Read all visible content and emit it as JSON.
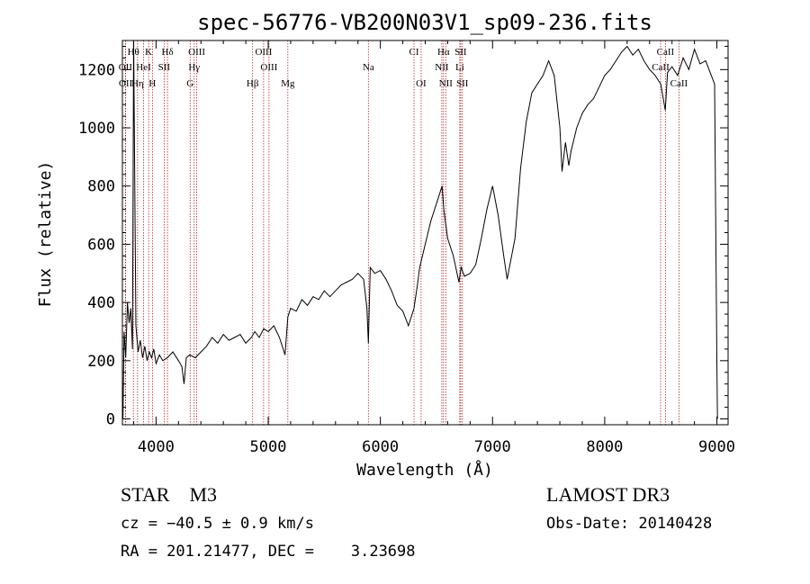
{
  "chart_data": {
    "type": "line",
    "title": "spec-56776-VB200N03V1_sp09-236.fits",
    "xlabel": "Wavelength (Å)",
    "ylabel": "Flux (relative)",
    "xlim": [
      3700,
      9100
    ],
    "ylim": [
      -20,
      1300
    ],
    "xticks": [
      4000,
      5000,
      6000,
      7000,
      8000,
      9000
    ],
    "xtick_labels": [
      "4000",
      "5000",
      "6000",
      "7000",
      "8000",
      "9000"
    ],
    "yticks": [
      0,
      200,
      400,
      600,
      800,
      1000,
      1200
    ],
    "ytick_labels": [
      "0",
      "200",
      "400",
      "600",
      "800",
      "1000",
      "1200"
    ],
    "grid": false,
    "line_color": "#000000",
    "marker_color": "#b22222",
    "spectral_lines": [
      {
        "label": "Hθ",
        "wavelength": 3798,
        "row": 0
      },
      {
        "label": "K",
        "wavelength": 3934,
        "row": 0
      },
      {
        "label": "Hδ",
        "wavelength": 4102,
        "row": 0
      },
      {
        "label": "OIII",
        "wavelength": 4363,
        "row": 0
      },
      {
        "label": "OIII",
        "wavelength": 4959,
        "row": 0
      },
      {
        "label": "CI",
        "wavelength": 6300,
        "row": 0
      },
      {
        "label": "Hα",
        "wavelength": 6563,
        "row": 0
      },
      {
        "label": "SII",
        "wavelength": 6716,
        "row": 0
      },
      {
        "label": "CaII",
        "wavelength": 8542,
        "row": 0
      },
      {
        "label": "OII",
        "wavelength": 3727,
        "row": 1
      },
      {
        "label": "HeI",
        "wavelength": 3889,
        "row": 1
      },
      {
        "label": "SII",
        "wavelength": 4072,
        "row": 1
      },
      {
        "label": "Hγ",
        "wavelength": 4340,
        "row": 1
      },
      {
        "label": "OIII",
        "wavelength": 5007,
        "row": 1
      },
      {
        "label": "Na",
        "wavelength": 5893,
        "row": 1
      },
      {
        "label": "NII",
        "wavelength": 6548,
        "row": 1
      },
      {
        "label": "Li",
        "wavelength": 6708,
        "row": 1
      },
      {
        "label": "CaII",
        "wavelength": 8498,
        "row": 1
      },
      {
        "label": "OII",
        "wavelength": 3729,
        "row": 2
      },
      {
        "label": "Hη",
        "wavelength": 3835,
        "row": 2
      },
      {
        "label": "H",
        "wavelength": 3968,
        "row": 2
      },
      {
        "label": "G",
        "wavelength": 4304,
        "row": 2
      },
      {
        "label": "Hβ",
        "wavelength": 4861,
        "row": 2
      },
      {
        "label": "Mg",
        "wavelength": 5175,
        "row": 2
      },
      {
        "label": "OI",
        "wavelength": 6363,
        "row": 2
      },
      {
        "label": "NII",
        "wavelength": 6583,
        "row": 2
      },
      {
        "label": "SII",
        "wavelength": 6731,
        "row": 2
      },
      {
        "label": "CaII",
        "wavelength": 8662,
        "row": 2
      }
    ],
    "series": [
      {
        "name": "flux",
        "x": [
          3705,
          3715,
          3730,
          3745,
          3760,
          3775,
          3790,
          3800,
          3820,
          3840,
          3860,
          3880,
          3900,
          3920,
          3940,
          3960,
          3980,
          4000,
          4030,
          4060,
          4100,
          4150,
          4200,
          4230,
          4250,
          4270,
          4300,
          4350,
          4400,
          4450,
          4500,
          4550,
          4600,
          4650,
          4700,
          4750,
          4800,
          4850,
          4880,
          4920,
          4960,
          5000,
          5050,
          5100,
          5150,
          5175,
          5200,
          5250,
          5300,
          5350,
          5400,
          5450,
          5500,
          5550,
          5600,
          5650,
          5700,
          5750,
          5800,
          5850,
          5880,
          5893,
          5910,
          5950,
          6000,
          6050,
          6100,
          6150,
          6200,
          6250,
          6300,
          6330,
          6350,
          6400,
          6450,
          6500,
          6550,
          6565,
          6600,
          6650,
          6700,
          6720,
          6750,
          6800,
          6850,
          6900,
          6950,
          7000,
          7050,
          7100,
          7130,
          7150,
          7200,
          7250,
          7300,
          7350,
          7400,
          7450,
          7500,
          7550,
          7600,
          7620,
          7650,
          7680,
          7700,
          7750,
          7800,
          7850,
          7900,
          7950,
          8000,
          8050,
          8100,
          8150,
          8200,
          8250,
          8300,
          8350,
          8400,
          8450,
          8500,
          8540,
          8560,
          8600,
          8650,
          8700,
          8750,
          8800,
          8850,
          8900,
          8950,
          8980,
          9000,
          9005
        ],
        "values": [
          0,
          300,
          210,
          400,
          330,
          380,
          240,
          1300,
          320,
          230,
          270,
          210,
          250,
          200,
          230,
          210,
          240,
          190,
          220,
          200,
          210,
          230,
          200,
          180,
          120,
          210,
          220,
          210,
          230,
          250,
          280,
          260,
          290,
          270,
          280,
          290,
          260,
          280,
          300,
          280,
          310,
          300,
          320,
          280,
          220,
          350,
          380,
          370,
          410,
          390,
          420,
          410,
          440,
          420,
          440,
          460,
          470,
          480,
          500,
          480,
          380,
          260,
          520,
          500,
          510,
          480,
          440,
          390,
          370,
          320,
          380,
          460,
          520,
          600,
          680,
          740,
          800,
          720,
          620,
          560,
          470,
          520,
          490,
          500,
          530,
          620,
          720,
          800,
          700,
          560,
          480,
          520,
          620,
          860,
          1020,
          1120,
          1150,
          1180,
          1230,
          1180,
          1000,
          850,
          950,
          870,
          920,
          1000,
          1050,
          1080,
          1100,
          1140,
          1180,
          1200,
          1230,
          1260,
          1280,
          1250,
          1270,
          1230,
          1200,
          1180,
          1150,
          1060,
          1190,
          1210,
          1180,
          1240,
          1200,
          1270,
          1220,
          1230,
          1180,
          1150,
          200,
          0
        ]
      }
    ]
  },
  "info": {
    "object_class": "STAR",
    "subclass": "M3",
    "survey": "LAMOST DR3",
    "cz_text": "cz = −40.5 ± 0.9 km/s",
    "obs_date": "Obs-Date: 20140428",
    "radec_text": "RA = 201.21477, DEC =    3.23698"
  }
}
